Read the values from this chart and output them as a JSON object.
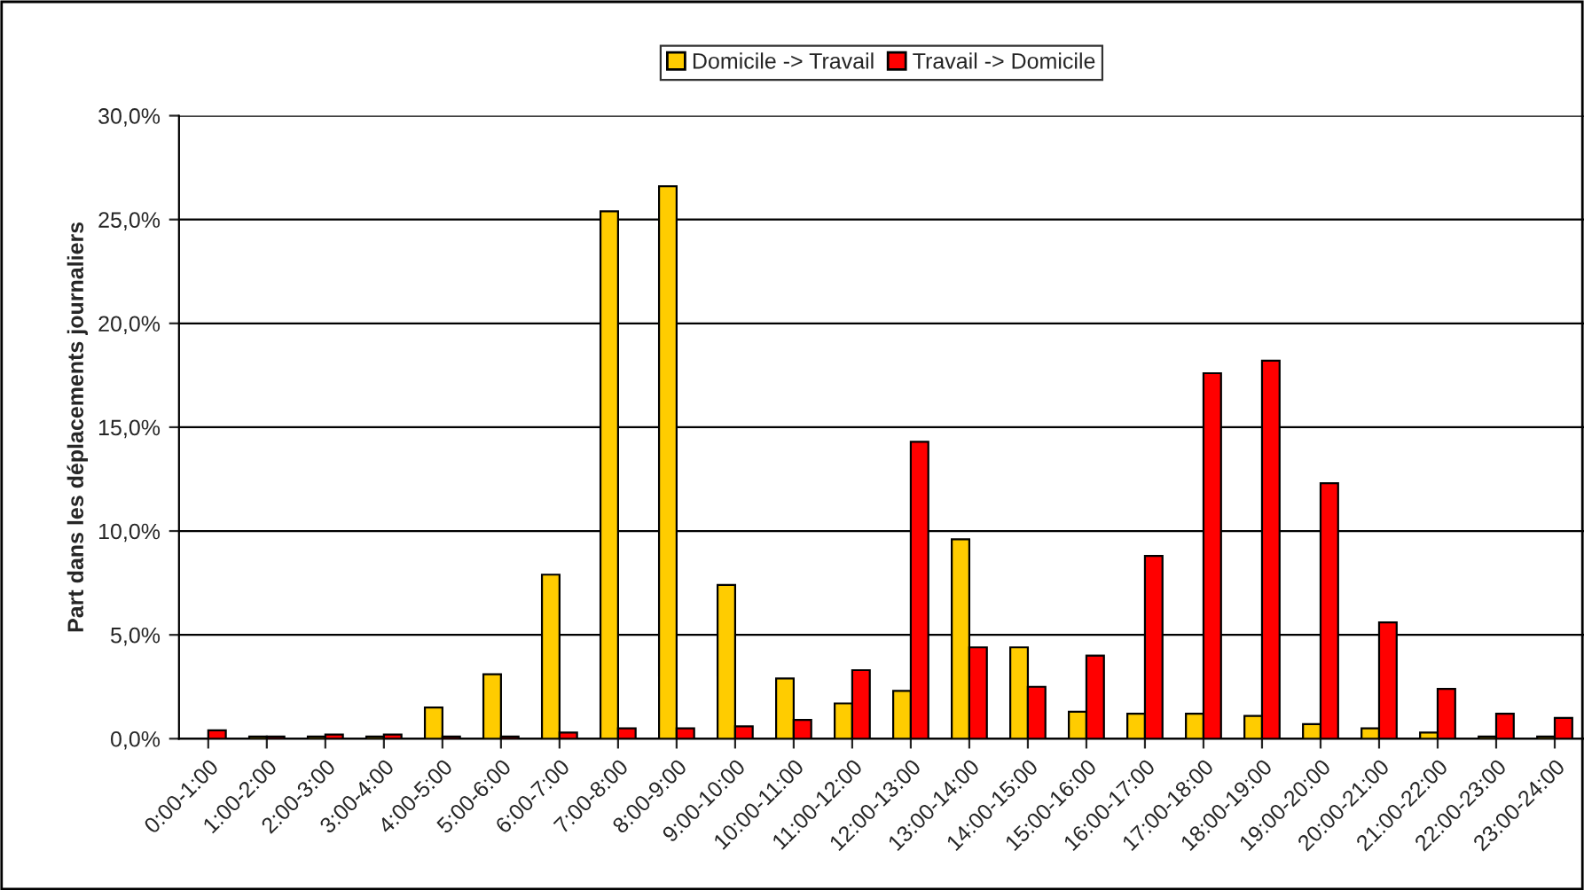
{
  "chart_data": {
    "type": "bar",
    "ylabel": "Part dans les déplacements journaliers",
    "categories": [
      "0:00-1:00",
      "1:00-2:00",
      "2:00-3:00",
      "3:00-4:00",
      "4:00-5:00",
      "5:00-6:00",
      "6:00-7:00",
      "7:00-8:00",
      "8:00-9:00",
      "9:00-10:00",
      "10:00-11:00",
      "11:00-12:00",
      "12:00-13:00",
      "13:00-14:00",
      "14:00-15:00",
      "15:00-16:00",
      "16:00-17:00",
      "17:00-18:00",
      "18:00-19:00",
      "19:00-20:00",
      "20:00-21:00",
      "21:00-22:00",
      "22:00-23:00",
      "23:00-24:00"
    ],
    "series": [
      {
        "name": "Domicile -> Travail",
        "color": "#ffcc00",
        "values": [
          null,
          0.1,
          0.1,
          0.1,
          1.5,
          3.1,
          7.9,
          25.4,
          26.6,
          7.4,
          2.9,
          1.7,
          2.3,
          9.6,
          4.4,
          1.3,
          1.2,
          1.2,
          1.1,
          0.7,
          0.5,
          0.3,
          0.1,
          0.1
        ]
      },
      {
        "name": "Travail -> Domicile",
        "color": "#ff0000",
        "values": [
          0.4,
          0.1,
          0.2,
          0.2,
          0.1,
          0.1,
          0.3,
          0.5,
          0.5,
          0.6,
          0.9,
          3.3,
          14.3,
          4.4,
          2.5,
          4.0,
          8.8,
          17.6,
          18.2,
          12.3,
          5.6,
          2.4,
          1.2,
          1.0
        ]
      }
    ],
    "ylim": [
      0,
      30
    ],
    "yticks": [
      {
        "value": 0,
        "label": "0,0%"
      },
      {
        "value": 5,
        "label": "5,0%"
      },
      {
        "value": 10,
        "label": "10,0%"
      },
      {
        "value": 15,
        "label": "15,0%"
      },
      {
        "value": 20,
        "label": "20,0%"
      },
      {
        "value": 25,
        "label": "25,0%"
      },
      {
        "value": 30,
        "label": "30,0%"
      }
    ],
    "grid": "y",
    "legend": "top"
  }
}
